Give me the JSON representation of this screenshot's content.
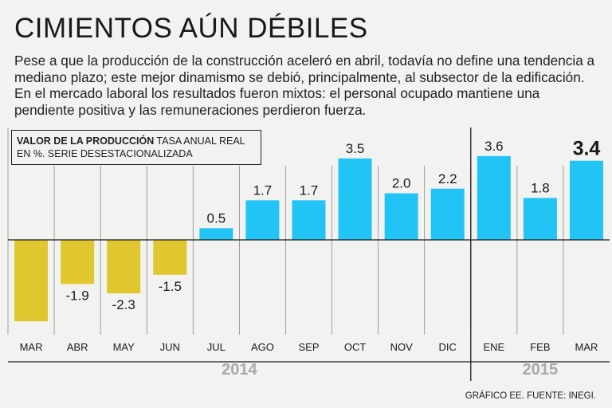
{
  "header": {
    "title": "CIMIENTOS AÚN DÉBILES",
    "subtitle": "Pese a que la producción de la construcción aceleró en abril, todavía no define una tendencia a mediano plazo; este mejor dinamismo se debió, principalmente, al subsector de la edificación. En el mercado laboral los resultados fueron mixtos: el personal ocupado mantiene una pendiente positiva y las remuneraciones perdieron fuerza."
  },
  "legend": {
    "bold_label": "VALOR DE LA PRODUCCIÓN",
    "rest_label": " TASA ANUAL REAL EN %. SERIE DESESTACIONALIZADA"
  },
  "footer": {
    "source": "GRÁFICO EE. FUENTE: INEGI."
  },
  "colors": {
    "positive": "#22c4f5",
    "negative": "#e0c730",
    "grid": "#8a8a8a",
    "year_label": "#a9a9a9"
  },
  "chart_data": {
    "type": "bar",
    "title": "VALOR DE LA PRODUCCIÓN TASA ANUAL REAL EN %. SERIE DESESTACIONALIZADA",
    "categories": [
      "MAR",
      "ABR",
      "MAY",
      "JUN",
      "JUL",
      "AGO",
      "SEP",
      "OCT",
      "NOV",
      "DIC",
      "ENE",
      "FEB",
      "MAR"
    ],
    "values": [
      -3.5,
      -1.9,
      -2.3,
      -1.5,
      0.5,
      1.7,
      1.7,
      3.5,
      2.0,
      2.2,
      3.6,
      1.8,
      3.4
    ],
    "value_labels": [
      "",
      "-1.9",
      "-2.3",
      "-1.5",
      "0.5",
      "1.7",
      "1.7",
      "3.5",
      "2.0",
      "2.2",
      "3.6",
      "1.8",
      "3.4"
    ],
    "highlight_last": true,
    "years": [
      {
        "label": "2014",
        "from": 0,
        "to": 9
      },
      {
        "label": "2015",
        "from": 10,
        "to": 12
      }
    ],
    "ylim": [
      -4.2,
      4.2
    ],
    "xlabel": "",
    "ylabel": "",
    "grid": true
  }
}
